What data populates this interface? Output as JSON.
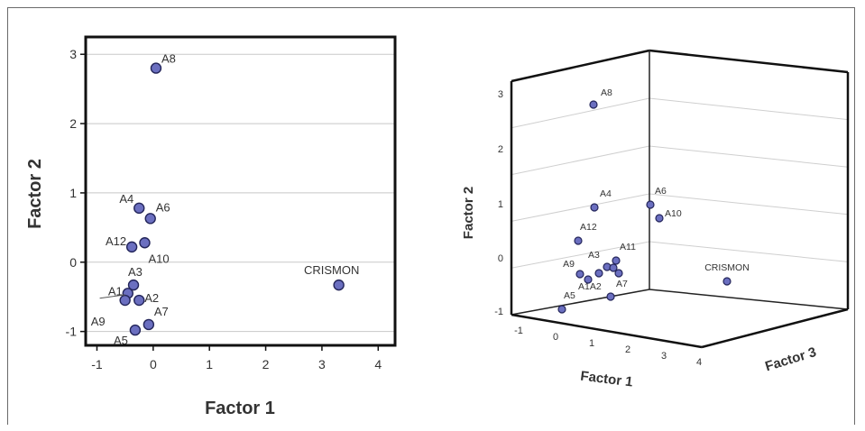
{
  "chart_data": [
    {
      "type": "scatter",
      "xlabel": "Factor 1",
      "ylabel": "Factor 2",
      "xlim": [
        -1.2,
        4.3
      ],
      "ylim": [
        -1.2,
        3.25
      ],
      "xticks": [
        -1,
        0,
        1,
        2,
        3,
        4
      ],
      "yticks": [
        -1,
        0,
        1,
        2,
        3
      ],
      "grid": "horizontal",
      "points": [
        {
          "label": "A8",
          "x": 0.05,
          "y": 2.8
        },
        {
          "label": "A4",
          "x": -0.25,
          "y": 0.78
        },
        {
          "label": "A6",
          "x": -0.05,
          "y": 0.63
        },
        {
          "label": "A12",
          "x": -0.38,
          "y": 0.22
        },
        {
          "label": "A10",
          "x": -0.15,
          "y": 0.28
        },
        {
          "label": "A3",
          "x": -0.35,
          "y": -0.33
        },
        {
          "label": "A1",
          "x": -0.45,
          "y": -0.45
        },
        {
          "label": "A2",
          "x": -0.25,
          "y": -0.55
        },
        {
          "label": "A9",
          "x": -0.5,
          "y": -0.55
        },
        {
          "label": "A7",
          "x": -0.08,
          "y": -0.9
        },
        {
          "label": "A5",
          "x": -0.32,
          "y": -0.98
        },
        {
          "label": "CRISMON",
          "x": 3.3,
          "y": -0.33
        }
      ],
      "marker_color": "#6b6fc0"
    },
    {
      "type": "scatter",
      "projection": "3d",
      "xlabel": "Factor 1",
      "ylabel": "Factor 2",
      "zlabel": "Factor 3",
      "xticks": [
        -1,
        0,
        1,
        2,
        3,
        4
      ],
      "yticks": [
        -1,
        0,
        1,
        2,
        3
      ],
      "points": [
        {
          "label": "A8"
        },
        {
          "label": "A4"
        },
        {
          "label": "A6"
        },
        {
          "label": "A10"
        },
        {
          "label": "A12"
        },
        {
          "label": "A11"
        },
        {
          "label": "A9"
        },
        {
          "label": "A3"
        },
        {
          "label": "A1A2"
        },
        {
          "label": "A7"
        },
        {
          "label": "A5"
        },
        {
          "label": "CRISMON"
        }
      ],
      "marker_color": "#6b6fc0"
    }
  ]
}
